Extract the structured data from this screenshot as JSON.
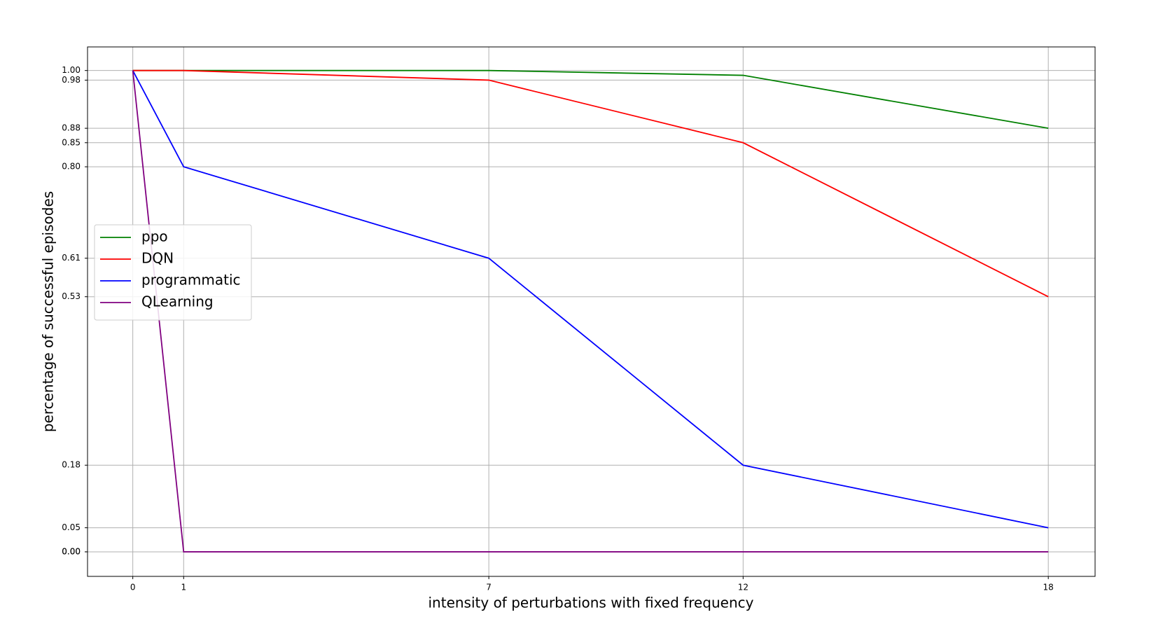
{
  "chart_data": {
    "type": "line",
    "xlabel": "intensity of perturbations with fixed frequency",
    "ylabel": "percentage of successful episodes",
    "x": [
      0,
      1,
      7,
      12,
      18
    ],
    "series": [
      {
        "name": "ppo",
        "color": "#008000",
        "values": [
          1,
          1,
          1,
          0.99,
          0.88
        ]
      },
      {
        "name": "DQN",
        "color": "#ff0000",
        "values": [
          1,
          1,
          0.98,
          0.85,
          0.53
        ]
      },
      {
        "name": "programmatic",
        "color": "#0000ff",
        "values": [
          1,
          0.8,
          0.61,
          0.18,
          0.05
        ]
      },
      {
        "name": "QLearning",
        "color": "#800080",
        "values": [
          1,
          0,
          0,
          0,
          0
        ]
      }
    ],
    "xlim": [
      -0.89,
      18.92
    ],
    "ylim": [
      -0.051,
      1.049
    ],
    "xticks": [
      0,
      1,
      7,
      12,
      18
    ],
    "yticks": [
      {
        "value": 0,
        "label": "0.00"
      },
      {
        "value": 0,
        "label": "0.00"
      },
      0.05,
      0.18,
      0.53,
      0.61,
      {
        "value": 0.8,
        "label": "0.80"
      },
      0.85,
      0.88,
      0.98,
      {
        "value": 1,
        "label": "1.00"
      }
    ],
    "grid": true,
    "legend": "center left"
  }
}
